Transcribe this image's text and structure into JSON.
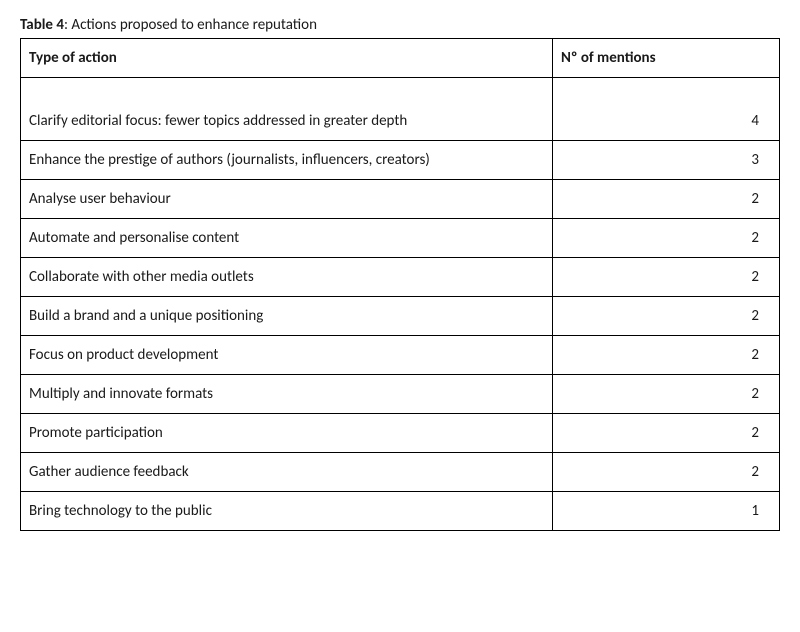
{
  "caption": {
    "label": "Table 4",
    "separator": ": ",
    "text": "Actions proposed to enhance reputation"
  },
  "columns": {
    "action": "Type of action",
    "mentions": "Nº of mentions"
  },
  "rows": [
    {
      "action": "Clarify editorial focus: fewer topics addressed in greater depth",
      "mentions": "4"
    },
    {
      "action": "Enhance the prestige of authors (journalists, influencers, creators)",
      "mentions": "3"
    },
    {
      "action": "Analyse user behaviour",
      "mentions": "2"
    },
    {
      "action": "Automate and personalise content",
      "mentions": "2"
    },
    {
      "action": "Collaborate with other media outlets",
      "mentions": "2"
    },
    {
      "action": "Build a brand and a unique positioning",
      "mentions": "2"
    },
    {
      "action": "Focus on product development",
      "mentions": "2"
    },
    {
      "action": "Multiply and innovate formats",
      "mentions": "2"
    },
    {
      "action": "Promote participation",
      "mentions": "2"
    },
    {
      "action": "Gather audience feedback",
      "mentions": "2"
    },
    {
      "action": "Bring technology to the public",
      "mentions": "1"
    }
  ]
}
